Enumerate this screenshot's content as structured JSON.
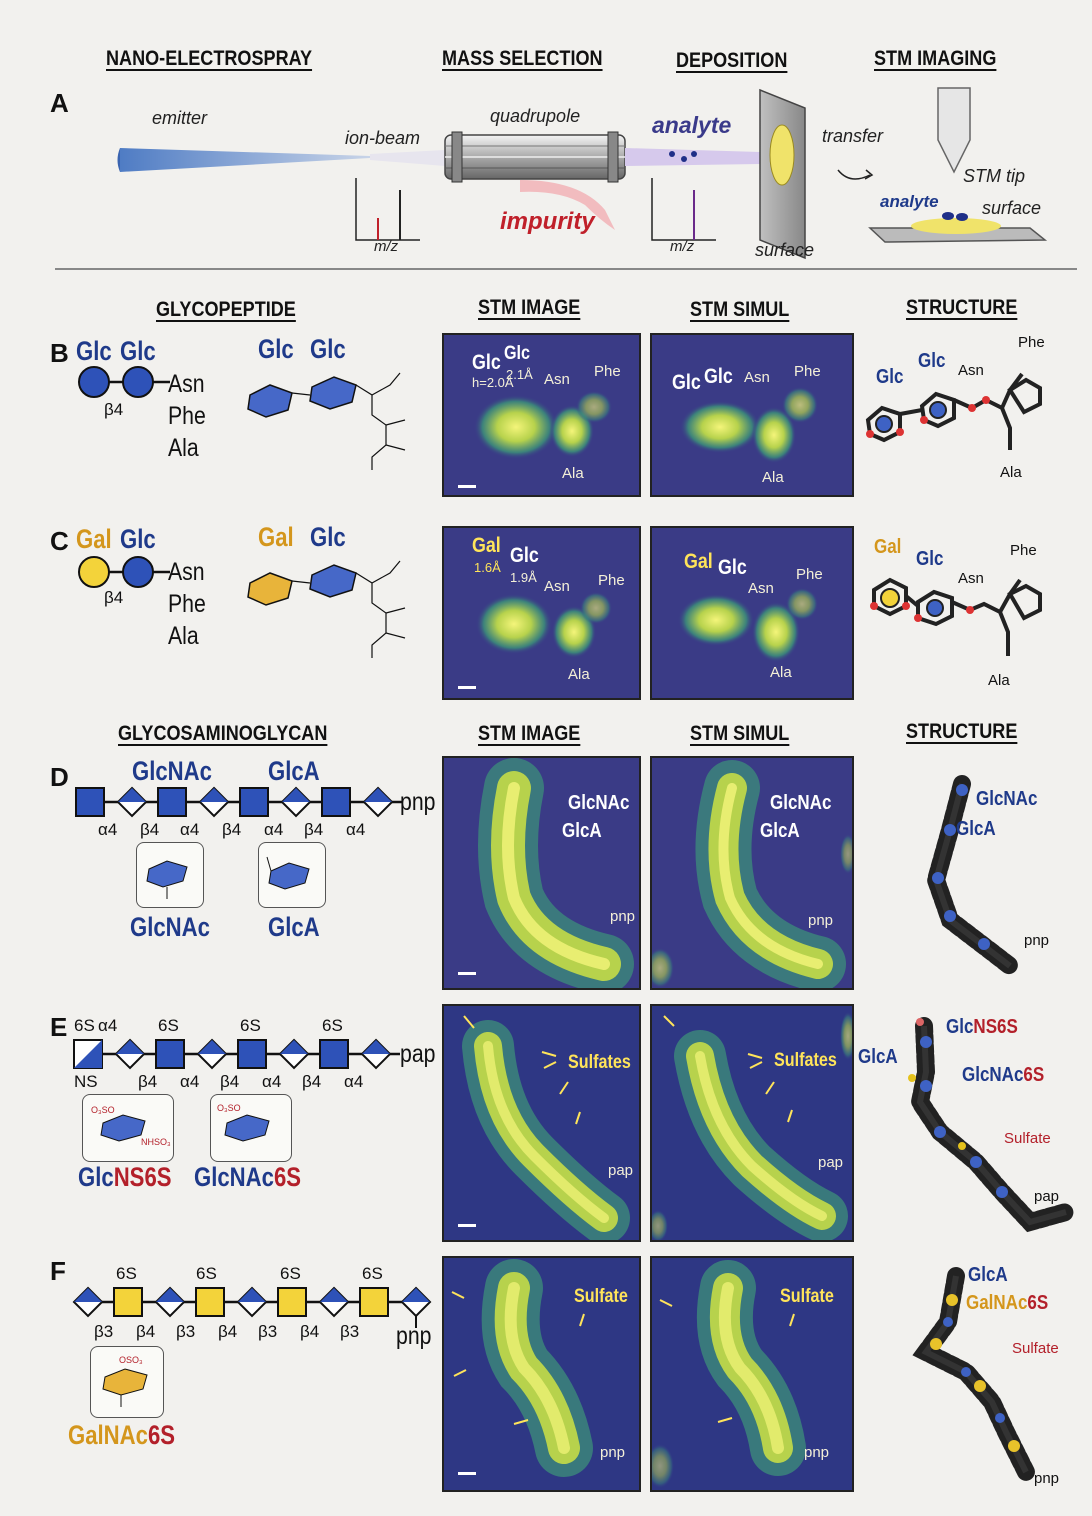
{
  "panel_a": {
    "letter": "A",
    "headers": [
      "NANO-ELECTROSPRAY",
      "MASS SELECTION",
      "DEPOSITION",
      "STM IMAGING"
    ],
    "emitter": "emitter",
    "ion_beam": "ion-beam",
    "quadrupole": "quadrupole",
    "analyte": "analyte",
    "impurity": "impurity",
    "mz_1": "m/z",
    "mz_2": "m/z",
    "surface": "surface",
    "transfer": "transfer",
    "stm_tip": "STM tip",
    "analyte_2": "analyte",
    "surface_2": "surface"
  },
  "section_glycopeptide": {
    "title": "GLYCOPEPTIDE",
    "stm_image": "STM IMAGE",
    "stm_simul": "STM SIMUL",
    "structure": "STRUCTURE"
  },
  "section_gag": {
    "title": "GLYCOSAMINOGLYCAN",
    "stm_image": "STM IMAGE",
    "stm_simul": "STM SIMUL",
    "structure": "STRUCTURE"
  },
  "panel_b": {
    "letter": "B",
    "s1": "Glc",
    "s2": "Glc",
    "link": "β4",
    "pep1": "Asn",
    "pep2": "Phe",
    "pep3": "Ala",
    "mol_s1": "Glc",
    "mol_s2": "Glc",
    "img_s1": "Glc",
    "img_s2": "Glc",
    "img_h": "h=2.0Å",
    "img_h2": "2.1Å",
    "img_asn": "Asn",
    "img_phe": "Phe",
    "img_ala": "Ala",
    "sim_s1": "Glc",
    "sim_s2": "Glc",
    "sim_asn": "Asn",
    "sim_phe": "Phe",
    "sim_ala": "Ala",
    "str_s1": "Glc",
    "str_s2": "Glc",
    "str_asn": "Asn",
    "str_phe": "Phe",
    "str_ala": "Ala"
  },
  "panel_c": {
    "letter": "C",
    "s1": "Gal",
    "s2": "Glc",
    "link": "β4",
    "pep1": "Asn",
    "pep2": "Phe",
    "pep3": "Ala",
    "mol_s1": "Gal",
    "mol_s2": "Glc",
    "img_s1": "Gal",
    "img_s2": "Glc",
    "img_h": "1.6Å",
    "img_h2": "1.9Å",
    "img_asn": "Asn",
    "img_phe": "Phe",
    "img_ala": "Ala",
    "sim_s1": "Gal",
    "sim_s2": "Glc",
    "sim_asn": "Asn",
    "sim_phe": "Phe",
    "sim_ala": "Ala",
    "str_s1": "Gal",
    "str_s2": "Glc",
    "str_asn": "Asn",
    "str_phe": "Phe",
    "str_ala": "Ala"
  },
  "panel_d": {
    "letter": "D",
    "top1": "GlcNAc",
    "top2": "GlcA",
    "links": [
      "α4",
      "β4",
      "α4",
      "β4",
      "α4",
      "β4",
      "α4"
    ],
    "end": "pnp",
    "inset1": "GlcNAc",
    "inset2": "GlcA",
    "img1": "GlcNAc",
    "img2": "GlcA",
    "img_end": "pnp",
    "sim1": "GlcNAc",
    "sim2": "GlcA",
    "sim_end": "pnp",
    "str1": "GlcNAc",
    "str2": "GlcA",
    "str_end": "pnp"
  },
  "panel_e": {
    "letter": "E",
    "sulf": [
      "6S",
      "6S",
      "6S",
      "6S"
    ],
    "first_link": "α4",
    "ns": "NS",
    "links": [
      "β4",
      "α4",
      "β4",
      "α4",
      "β4",
      "α4"
    ],
    "end": "pap",
    "inset1_a": "Glc",
    "inset1_b": "NS6S",
    "inset2_a": "GlcNAc",
    "inset2_b": "6S",
    "img_sulf": "Sulfates",
    "img_end": "pap",
    "sim_sulf": "Sulfates",
    "sim_end": "pap",
    "str_glca": "GlcA",
    "str1_a": "Glc",
    "str1_b": "NS6S",
    "str2_a": "GlcNAc",
    "str2_b": "6S",
    "str_sulf": "Sulfate",
    "str_end": "pap"
  },
  "panel_f": {
    "letter": "F",
    "sulf": [
      "6S",
      "6S",
      "6S",
      "6S"
    ],
    "links": [
      "β3",
      "β4",
      "β3",
      "β4",
      "β3",
      "β4",
      "β3"
    ],
    "end": "pnp",
    "inset_a": "GalNAc",
    "inset_b": "6S",
    "img_sulf": "Sulfate",
    "img_end": "pnp",
    "sim_sulf": "Sulfate",
    "sim_end": "pnp",
    "str_glca": "GlcA",
    "str_a": "GalNAc",
    "str_b": "6S",
    "str_sulf": "Sulfate",
    "str_end": "pnp"
  }
}
